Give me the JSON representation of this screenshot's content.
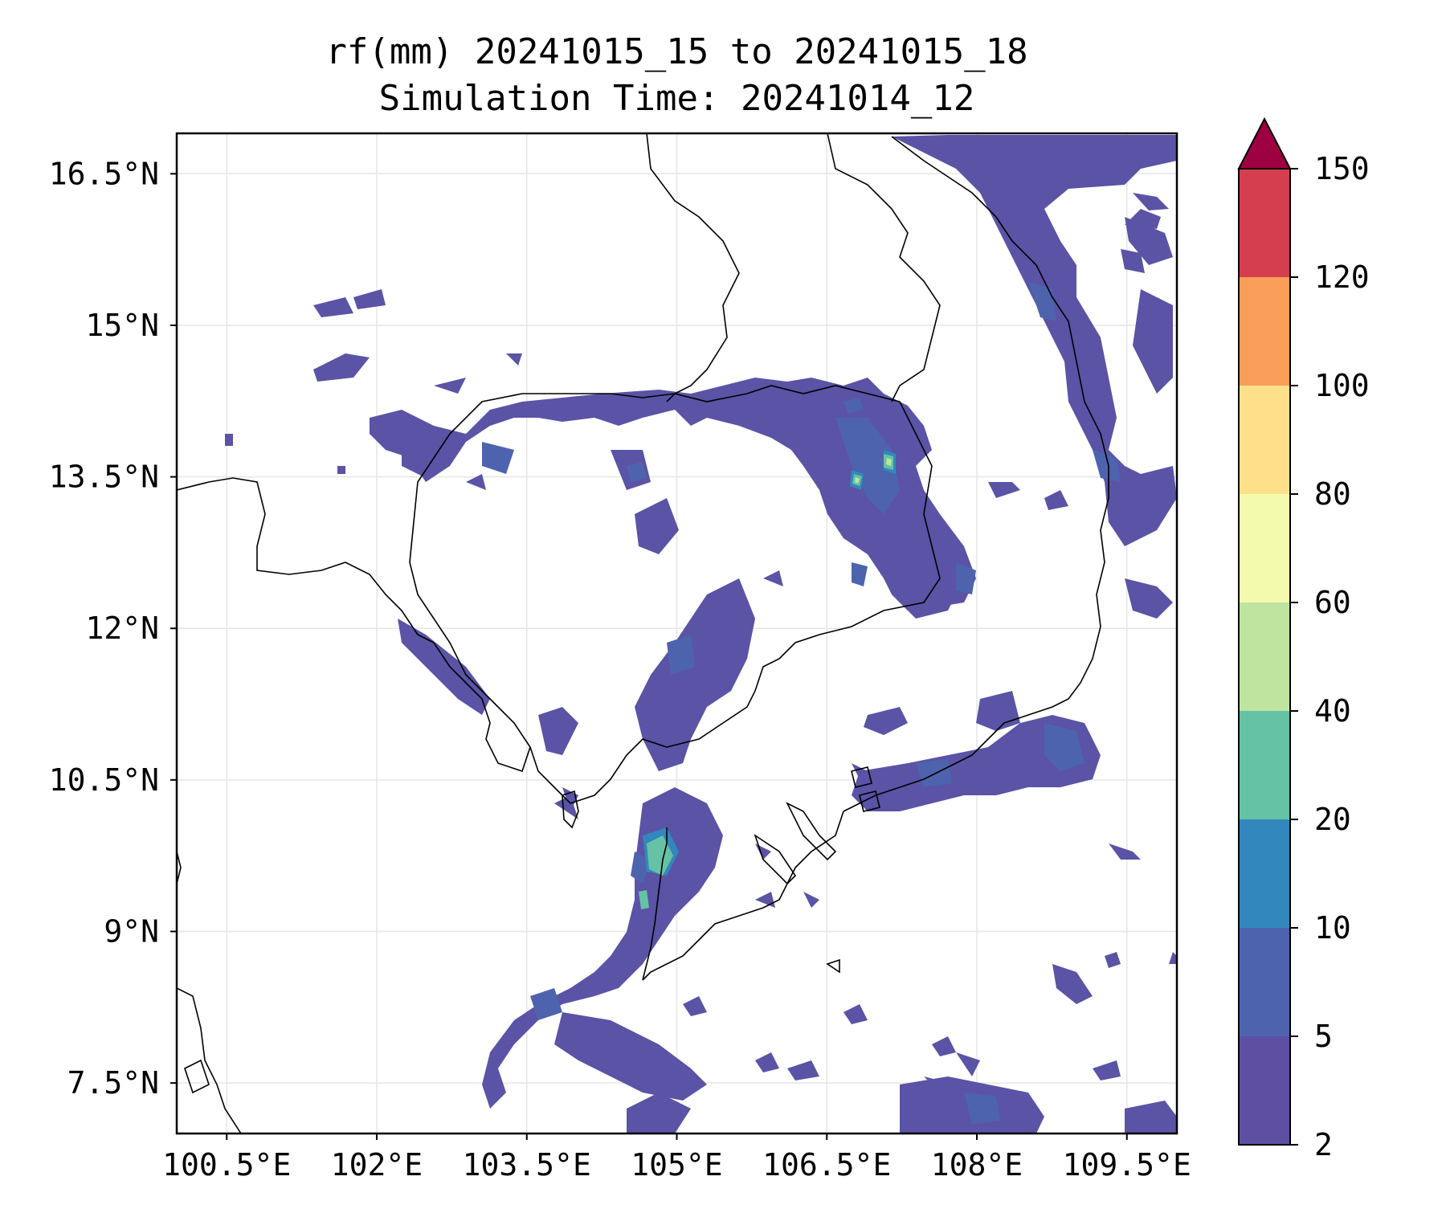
{
  "title": {
    "line1": "rf(mm) 20241015_15 to 20241015_18",
    "line2": "Simulation Time: 20241014_12"
  },
  "map": {
    "lon_range": [
      100.0,
      110.0
    ],
    "lat_range": [
      7.0,
      16.9
    ],
    "gridlines": true,
    "x_ticks": [
      {
        "value": 100.5,
        "label": "100.5°E"
      },
      {
        "value": 102.0,
        "label": "102°E"
      },
      {
        "value": 103.5,
        "label": "103.5°E"
      },
      {
        "value": 105.0,
        "label": "105°E"
      },
      {
        "value": 106.5,
        "label": "106.5°E"
      },
      {
        "value": 108.0,
        "label": "108°E"
      },
      {
        "value": 109.5,
        "label": "109.5°E"
      }
    ],
    "y_ticks": [
      {
        "value": 7.5,
        "label": "7.5°N"
      },
      {
        "value": 9.0,
        "label": "9°N"
      },
      {
        "value": 10.5,
        "label": "10.5°N"
      },
      {
        "value": 12.0,
        "label": "12°N"
      },
      {
        "value": 13.5,
        "label": "13.5°N"
      },
      {
        "value": 15.0,
        "label": "15°N"
      },
      {
        "value": 16.5,
        "label": "16.5°N"
      }
    ]
  },
  "colorbar": {
    "extend": "max",
    "extend_color": "#9e0142",
    "levels": [
      {
        "label": "2",
        "color": "#5e4fa2"
      },
      {
        "label": "5",
        "color": "#4e63ad"
      },
      {
        "label": "10",
        "color": "#3288bd"
      },
      {
        "label": "20",
        "color": "#66c2a5"
      },
      {
        "label": "40",
        "color": "#bee4a0"
      },
      {
        "label": "60",
        "color": "#f3faad"
      },
      {
        "label": "80",
        "color": "#fee08b"
      },
      {
        "label": "100",
        "color": "#f99e59"
      },
      {
        "label": "120",
        "color": "#d53e4f"
      },
      {
        "label": "150"
      }
    ]
  }
}
